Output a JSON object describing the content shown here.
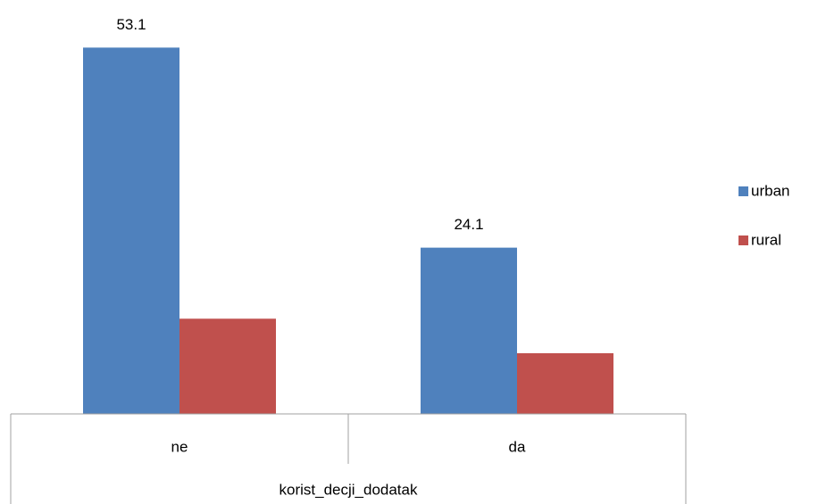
{
  "chart_data": {
    "type": "bar",
    "x_label": "korist_decji_dodatak",
    "categories": [
      "ne",
      "da"
    ],
    "series": [
      {
        "name": "urban",
        "color": "#4f81bd",
        "values": [
          53.1,
          24.1
        ],
        "show_labels": true
      },
      {
        "name": "rural",
        "color": "#c0504d",
        "values": [
          13.8,
          8.8
        ],
        "show_labels": false
      }
    ],
    "ylim": [
      0,
      60
    ],
    "legend": "right"
  }
}
